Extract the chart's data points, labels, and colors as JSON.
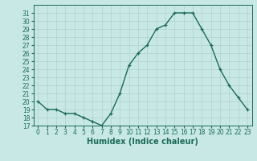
{
  "x": [
    0,
    1,
    2,
    3,
    4,
    5,
    6,
    7,
    8,
    9,
    10,
    11,
    12,
    13,
    14,
    15,
    16,
    17,
    18,
    19,
    20,
    21,
    22,
    23
  ],
  "y": [
    20,
    19,
    19,
    18.5,
    18.5,
    18,
    17.5,
    17,
    18.5,
    21,
    24.5,
    26,
    27,
    29,
    29.5,
    31,
    31,
    31,
    29,
    27,
    24,
    22,
    20.5,
    19
  ],
  "line_color": "#1a6b5a",
  "marker": "+",
  "marker_size": 3.5,
  "bg_color": "#c8e8e5",
  "grid_color": "#b0d0cd",
  "tick_color": "#1a6b5a",
  "xlabel": "Humidex (Indice chaleur)",
  "xlim": [
    -0.5,
    23.5
  ],
  "ylim": [
    17,
    32
  ],
  "yticks": [
    17,
    18,
    19,
    20,
    21,
    22,
    23,
    24,
    25,
    26,
    27,
    28,
    29,
    30,
    31
  ],
  "xticks": [
    0,
    1,
    2,
    3,
    4,
    5,
    6,
    7,
    8,
    9,
    10,
    11,
    12,
    13,
    14,
    15,
    16,
    17,
    18,
    19,
    20,
    21,
    22,
    23
  ],
  "font_size": 5.5,
  "xlabel_font_size": 7.0,
  "line_width": 1.0
}
